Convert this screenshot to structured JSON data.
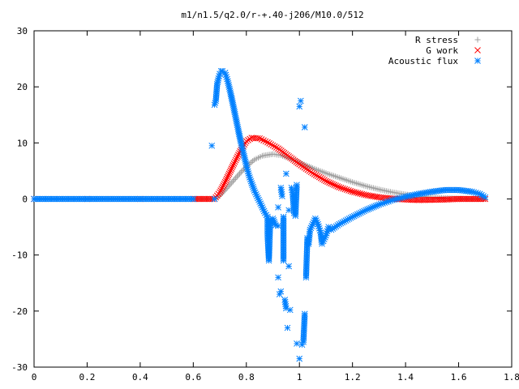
{
  "chart_data": {
    "type": "scatter",
    "title": "m1/n1.5/q2.0/r-+.40-j206/M10.0/512",
    "xlabel": "",
    "ylabel": "",
    "xlim": [
      0,
      1.8
    ],
    "ylim": [
      -30,
      30
    ],
    "x_ticks": [
      "0",
      "0.2",
      "0.4",
      "0.6",
      "0.8",
      "1",
      "1.2",
      "1.4",
      "1.6",
      "1.8"
    ],
    "y_ticks": [
      "30",
      "20",
      "10",
      "0",
      "-10",
      "-20",
      "-30"
    ],
    "grid": false,
    "legend_position": "top-right",
    "series": [
      {
        "name": "R stress",
        "marker": "+",
        "color": "#a0a0a0",
        "points": [
          [
            0.0,
            0
          ],
          [
            0.2,
            0
          ],
          [
            0.4,
            0
          ],
          [
            0.6,
            0
          ],
          [
            0.68,
            0
          ],
          [
            0.7,
            0.6
          ],
          [
            0.72,
            1.6
          ],
          [
            0.75,
            3.2
          ],
          [
            0.78,
            4.8
          ],
          [
            0.8,
            5.8
          ],
          [
            0.83,
            7.0
          ],
          [
            0.86,
            7.7
          ],
          [
            0.9,
            8.0
          ],
          [
            0.93,
            7.8
          ],
          [
            0.97,
            7.1
          ],
          [
            1.0,
            6.5
          ],
          [
            1.05,
            5.5
          ],
          [
            1.1,
            4.6
          ],
          [
            1.15,
            3.8
          ],
          [
            1.2,
            3.0
          ],
          [
            1.25,
            2.3
          ],
          [
            1.3,
            1.7
          ],
          [
            1.35,
            1.2
          ],
          [
            1.4,
            0.8
          ],
          [
            1.45,
            0.5
          ],
          [
            1.5,
            0.3
          ],
          [
            1.55,
            0.15
          ],
          [
            1.6,
            0.05
          ],
          [
            1.65,
            0.0
          ],
          [
            1.7,
            0.0
          ]
        ]
      },
      {
        "name": "G work",
        "marker": "x",
        "color": "#ff0000",
        "points": [
          [
            0.0,
            0
          ],
          [
            0.2,
            0
          ],
          [
            0.4,
            0
          ],
          [
            0.6,
            0
          ],
          [
            0.68,
            0
          ],
          [
            0.7,
            1.2
          ],
          [
            0.72,
            3.0
          ],
          [
            0.75,
            6.0
          ],
          [
            0.78,
            8.8
          ],
          [
            0.8,
            10.3
          ],
          [
            0.82,
            10.9
          ],
          [
            0.85,
            10.8
          ],
          [
            0.88,
            10.1
          ],
          [
            0.92,
            9.0
          ],
          [
            0.96,
            7.6
          ],
          [
            1.0,
            6.2
          ],
          [
            1.05,
            4.6
          ],
          [
            1.1,
            3.2
          ],
          [
            1.15,
            2.1
          ],
          [
            1.2,
            1.3
          ],
          [
            1.25,
            0.7
          ],
          [
            1.3,
            0.3
          ],
          [
            1.35,
            0.05
          ],
          [
            1.4,
            -0.1
          ],
          [
            1.45,
            -0.2
          ],
          [
            1.5,
            -0.15
          ],
          [
            1.55,
            -0.1
          ],
          [
            1.6,
            0.0
          ],
          [
            1.65,
            0.0
          ],
          [
            1.7,
            0.0
          ]
        ]
      },
      {
        "name": "Acoustic flux",
        "marker": "*",
        "color": "#0080ff",
        "points": [
          [
            0.0,
            0
          ],
          [
            0.1,
            0
          ],
          [
            0.2,
            0
          ],
          [
            0.3,
            0
          ],
          [
            0.4,
            0
          ],
          [
            0.5,
            0
          ],
          [
            0.6,
            0
          ],
          [
            0.68,
            0
          ],
          [
            0.67,
            9.5
          ],
          [
            0.68,
            16.8
          ],
          [
            0.685,
            17.5
          ],
          [
            0.69,
            20.5
          ],
          [
            0.695,
            21.5
          ],
          [
            0.7,
            22.3
          ],
          [
            0.705,
            22.8
          ],
          [
            0.71,
            22.8
          ],
          [
            0.72,
            22.5
          ],
          [
            0.73,
            21.0
          ],
          [
            0.74,
            19.0
          ],
          [
            0.75,
            16.8
          ],
          [
            0.76,
            14.5
          ],
          [
            0.77,
            12.2
          ],
          [
            0.78,
            10.0
          ],
          [
            0.79,
            8.0
          ],
          [
            0.8,
            6.0
          ],
          [
            0.81,
            4.2
          ],
          [
            0.82,
            2.8
          ],
          [
            0.83,
            1.5
          ],
          [
            0.84,
            0.5
          ],
          [
            0.85,
            -0.5
          ],
          [
            0.86,
            -1.5
          ],
          [
            0.87,
            -2.5
          ],
          [
            0.88,
            -3.2
          ],
          [
            0.89,
            -3.8
          ],
          [
            0.9,
            -4.3
          ],
          [
            0.91,
            -4.7
          ],
          [
            0.92,
            -4.8
          ],
          [
            0.88,
            -6.5
          ],
          [
            0.885,
            -11
          ],
          [
            0.9,
            -3.5
          ],
          [
            0.92,
            -14
          ],
          [
            0.925,
            -17
          ],
          [
            0.93,
            -16.5
          ],
          [
            0.94,
            -11
          ],
          [
            0.945,
            -18
          ],
          [
            0.95,
            -19.5
          ],
          [
            0.955,
            -23
          ],
          [
            0.96,
            -12
          ],
          [
            0.965,
            -19.8
          ],
          [
            0.92,
            -1.5
          ],
          [
            0.93,
            2.0
          ],
          [
            0.935,
            0.5
          ],
          [
            0.94,
            -3.2
          ],
          [
            0.95,
            4.5
          ],
          [
            0.96,
            -2.0
          ],
          [
            0.97,
            2.0
          ],
          [
            0.975,
            0.8
          ],
          [
            0.98,
            -2.5
          ],
          [
            0.985,
            -3.0
          ],
          [
            0.99,
            2.5
          ],
          [
            1.0,
            16.5
          ],
          [
            1.005,
            17.5
          ],
          [
            1.01,
            -26
          ],
          [
            1.015,
            -25.5
          ],
          [
            1.02,
            -20.5
          ],
          [
            1.02,
            12.8
          ],
          [
            1.025,
            -14
          ],
          [
            1.03,
            -7.0
          ],
          [
            1.035,
            -8.0
          ],
          [
            1.04,
            -5.5
          ],
          [
            1.0,
            -28.5
          ],
          [
            0.99,
            -25.8
          ],
          [
            1.05,
            -4.5
          ],
          [
            1.06,
            -3.5
          ],
          [
            1.07,
            -4.5
          ],
          [
            1.08,
            -6.0
          ],
          [
            1.085,
            -8.0
          ],
          [
            1.09,
            -7.5
          ],
          [
            1.1,
            -6.5
          ],
          [
            1.11,
            -5.0
          ],
          [
            1.12,
            -5.5
          ],
          [
            1.15,
            -4.5
          ],
          [
            1.2,
            -3.2
          ],
          [
            1.25,
            -2.0
          ],
          [
            1.3,
            -1.0
          ],
          [
            1.35,
            -0.2
          ],
          [
            1.4,
            0.4
          ],
          [
            1.45,
            0.9
          ],
          [
            1.5,
            1.3
          ],
          [
            1.55,
            1.6
          ],
          [
            1.6,
            1.6
          ],
          [
            1.65,
            1.3
          ],
          [
            1.68,
            0.9
          ],
          [
            1.7,
            0.3
          ]
        ]
      }
    ]
  }
}
